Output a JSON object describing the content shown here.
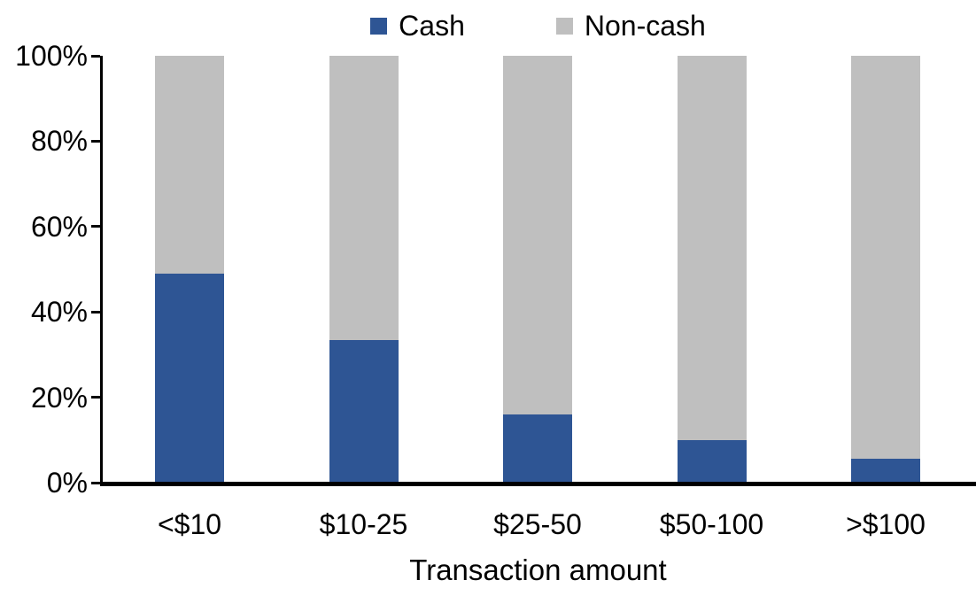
{
  "chart_data": {
    "type": "bar",
    "stacked": true,
    "title": "",
    "xlabel": "Transaction amount",
    "ylabel": "",
    "categories": [
      "<$10",
      "$10-25",
      "$25-50",
      "$50-100",
      ">$100"
    ],
    "series": [
      {
        "name": "Cash",
        "color": "#2E5594",
        "values": [
          49,
          33.5,
          16,
          10,
          5.5
        ]
      },
      {
        "name": "Non-cash",
        "color": "#BFBFBF",
        "values": [
          51,
          66.5,
          84,
          90,
          94.5
        ]
      }
    ],
    "ylim": [
      0,
      100
    ],
    "ytick_labels": [
      "0%",
      "20%",
      "40%",
      "60%",
      "80%",
      "100%"
    ],
    "grid": false,
    "legend_position": "top-center",
    "axis_color": "#000000"
  }
}
